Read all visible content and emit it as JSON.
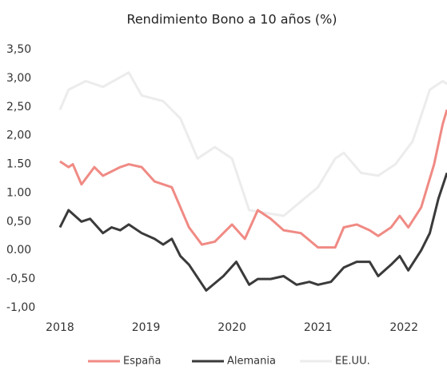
{
  "chart_data": {
    "type": "line",
    "title": "Rendimiento Bono a 10 años (%)",
    "xlim": [
      2018,
      2022.5
    ],
    "xticks": [
      2018,
      2019,
      2020,
      2021,
      2022
    ],
    "ylim": [
      -1,
      3.5
    ],
    "yticks": [
      {
        "value": 3.5,
        "label": "3,50"
      },
      {
        "value": 3,
        "label": "3,00"
      },
      {
        "value": 2.5,
        "label": "2,50"
      },
      {
        "value": 2,
        "label": "2,00"
      },
      {
        "value": 1.5,
        "label": "1.50"
      },
      {
        "value": 1,
        "label": "1.00"
      },
      {
        "value": 0.5,
        "label": "0,50"
      },
      {
        "value": 0,
        "label": "0.00"
      },
      {
        "value": -0.5,
        "label": "-0,50"
      },
      {
        "value": -1,
        "label": "-1,00"
      }
    ],
    "series": [
      {
        "name": "España",
        "color": "#f08a84",
        "x": [
          2018.0,
          2018.1,
          2018.15,
          2018.25,
          2018.4,
          2018.5,
          2018.7,
          2018.8,
          2018.95,
          2019.1,
          2019.3,
          2019.5,
          2019.65,
          2019.8,
          2020.0,
          2020.15,
          2020.3,
          2020.45,
          2020.6,
          2020.8,
          2021.0,
          2021.2,
          2021.3,
          2021.45,
          2021.6,
          2021.7,
          2021.85,
          2021.95,
          2022.05,
          2022.2,
          2022.35,
          2022.45,
          2022.5
        ],
        "values": [
          1.55,
          1.45,
          1.5,
          1.15,
          1.45,
          1.3,
          1.45,
          1.5,
          1.45,
          1.2,
          1.1,
          0.4,
          0.1,
          0.15,
          0.45,
          0.2,
          0.7,
          0.55,
          0.35,
          0.3,
          0.05,
          0.05,
          0.4,
          0.45,
          0.35,
          0.25,
          0.4,
          0.6,
          0.4,
          0.75,
          1.5,
          2.2,
          2.45
        ]
      },
      {
        "name": "Alemania",
        "color": "#3a3a3a",
        "x": [
          2018.0,
          2018.1,
          2018.25,
          2018.35,
          2018.5,
          2018.6,
          2018.7,
          2018.8,
          2018.95,
          2019.1,
          2019.2,
          2019.3,
          2019.4,
          2019.5,
          2019.7,
          2019.9,
          2020.05,
          2020.2,
          2020.3,
          2020.45,
          2020.6,
          2020.75,
          2020.9,
          2021.0,
          2021.15,
          2021.3,
          2021.45,
          2021.6,
          2021.7,
          2021.85,
          2021.95,
          2022.05,
          2022.2,
          2022.3,
          2022.4,
          2022.5
        ],
        "values": [
          0.4,
          0.7,
          0.5,
          0.55,
          0.3,
          0.4,
          0.35,
          0.45,
          0.3,
          0.2,
          0.1,
          0.2,
          -0.1,
          -0.25,
          -0.7,
          -0.45,
          -0.2,
          -0.6,
          -0.5,
          -0.5,
          -0.45,
          -0.6,
          -0.55,
          -0.6,
          -0.55,
          -0.3,
          -0.2,
          -0.2,
          -0.45,
          -0.25,
          -0.1,
          -0.35,
          0.0,
          0.3,
          0.9,
          1.35
        ]
      },
      {
        "name": "EE.UU.",
        "color": "#ececec",
        "x": [
          2018.0,
          2018.1,
          2018.3,
          2018.5,
          2018.8,
          2018.95,
          2019.2,
          2019.4,
          2019.6,
          2019.8,
          2020.0,
          2020.2,
          2020.4,
          2020.6,
          2020.8,
          2021.0,
          2021.2,
          2021.3,
          2021.5,
          2021.7,
          2021.9,
          2022.1,
          2022.3,
          2022.45,
          2022.5
        ],
        "values": [
          2.45,
          2.8,
          2.95,
          2.85,
          3.1,
          2.7,
          2.6,
          2.3,
          1.6,
          1.8,
          1.6,
          0.7,
          0.65,
          0.6,
          0.85,
          1.1,
          1.6,
          1.7,
          1.35,
          1.3,
          1.5,
          1.9,
          2.8,
          2.95,
          2.9
        ]
      }
    ]
  }
}
